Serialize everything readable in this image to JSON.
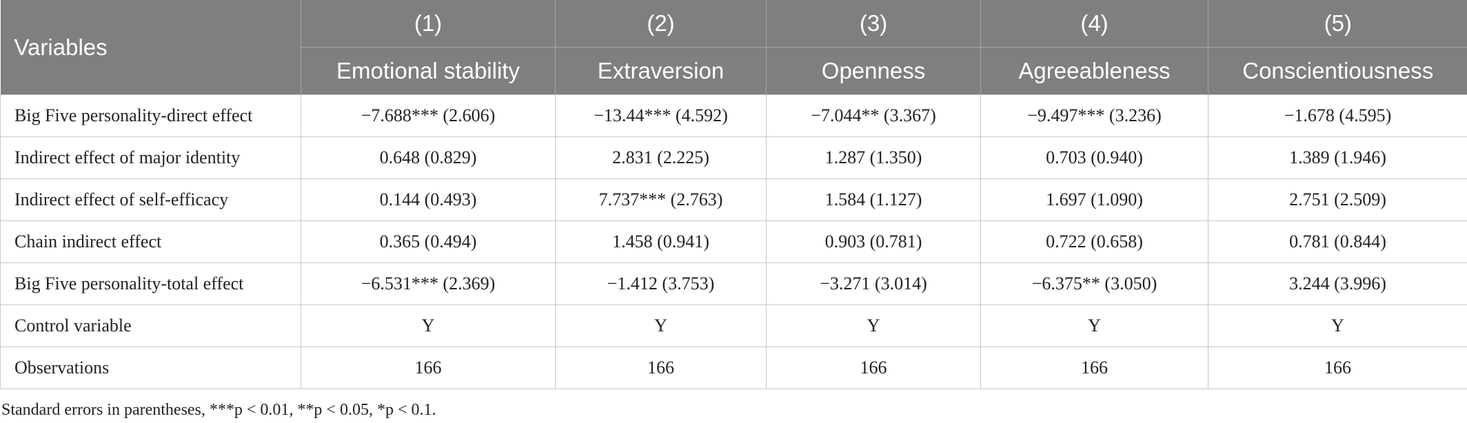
{
  "header": {
    "variables": "Variables",
    "numbers": [
      "(1)",
      "(2)",
      "(3)",
      "(4)",
      "(5)"
    ],
    "columns": [
      "Emotional stability",
      "Extraversion",
      "Openness",
      "Agreeableness",
      "Conscientiousness"
    ]
  },
  "table": {
    "rows": [
      [
        "Big Five personality-direct effect",
        "−7.688*** (2.606)",
        "−13.44*** (4.592)",
        "−7.044** (3.367)",
        "−9.497*** (3.236)",
        "−1.678 (4.595)"
      ],
      [
        "Indirect effect of major identity",
        "0.648 (0.829)",
        "2.831 (2.225)",
        "1.287 (1.350)",
        "0.703 (0.940)",
        "1.389 (1.946)"
      ],
      [
        "Indirect effect of self-efficacy",
        "0.144 (0.493)",
        "7.737*** (2.763)",
        "1.584 (1.127)",
        "1.697 (1.090)",
        "2.751 (2.509)"
      ],
      [
        "Chain indirect effect",
        "0.365 (0.494)",
        "1.458 (0.941)",
        "0.903 (0.781)",
        "0.722 (0.658)",
        "0.781 (0.844)"
      ],
      [
        "Big Five personality-total effect",
        "−6.531*** (2.369)",
        "−1.412 (3.753)",
        "−3.271 (3.014)",
        "−6.375** (3.050)",
        "3.244 (3.996)"
      ],
      [
        "Control variable",
        "Y",
        "Y",
        "Y",
        "Y",
        "Y"
      ],
      [
        "Observations",
        "166",
        "166",
        "166",
        "166",
        "166"
      ]
    ]
  },
  "footnote": "Standard errors in parentheses, ***p < 0.01, **p < 0.05, *p < 0.1."
}
